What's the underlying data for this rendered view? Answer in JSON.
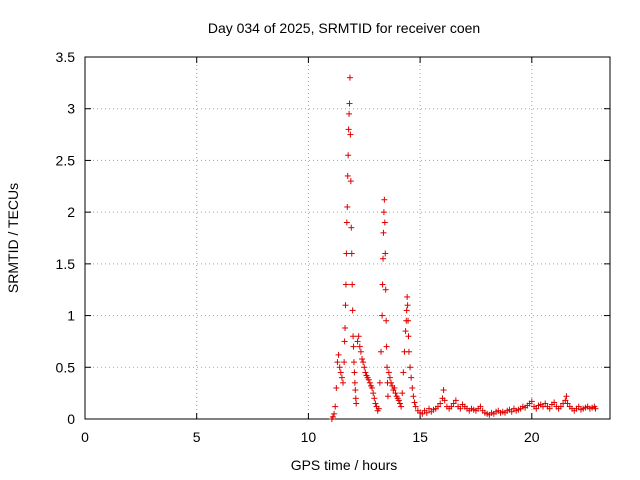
{
  "chart_data": {
    "type": "scatter",
    "title": "Day 034 of 2025, SRMTID for receiver coen",
    "xlabel": "GPS time / hours",
    "ylabel": "SRMTID / TECUs",
    "xlim": [
      0,
      23.5
    ],
    "ylim": [
      0,
      3.5
    ],
    "x_ticks": [
      0,
      5,
      10,
      15,
      20
    ],
    "x_tick_labels": [
      "0",
      "5",
      "10",
      "15",
      "20"
    ],
    "y_ticks": [
      0,
      0.5,
      1,
      1.5,
      2,
      2.5,
      3,
      3.5
    ],
    "y_tick_labels": [
      "0",
      "0.5",
      "1",
      "1.5",
      "2",
      "2.5",
      "3",
      "3.5"
    ],
    "grid": true,
    "marker": "+",
    "marker_color": "#e00000",
    "series": [
      {
        "name": "SRMTID",
        "points": [
          [
            11.05,
            0.0
          ],
          [
            11.1,
            0.02
          ],
          [
            11.15,
            0.05
          ],
          [
            11.2,
            0.12
          ],
          [
            11.25,
            0.3
          ],
          [
            11.3,
            0.55
          ],
          [
            11.35,
            0.62
          ],
          [
            11.4,
            0.5
          ],
          [
            11.45,
            0.45
          ],
          [
            11.5,
            0.4
          ],
          [
            11.55,
            0.35
          ],
          [
            11.6,
            0.55
          ],
          [
            11.62,
            0.75
          ],
          [
            11.64,
            0.88
          ],
          [
            11.66,
            1.1
          ],
          [
            11.68,
            1.3
          ],
          [
            11.7,
            1.6
          ],
          [
            11.72,
            1.9
          ],
          [
            11.74,
            2.05
          ],
          [
            11.76,
            2.35
          ],
          [
            11.78,
            2.55
          ],
          [
            11.8,
            2.8
          ],
          [
            11.82,
            2.95
          ],
          [
            11.84,
            3.05
          ],
          [
            11.86,
            3.3
          ],
          [
            11.88,
            2.75
          ],
          [
            11.9,
            2.3
          ],
          [
            11.92,
            1.85
          ],
          [
            11.94,
            1.6
          ],
          [
            11.96,
            1.3
          ],
          [
            11.98,
            1.05
          ],
          [
            12.0,
            0.8
          ],
          [
            12.02,
            0.7
          ],
          [
            12.04,
            0.55
          ],
          [
            12.06,
            0.45
          ],
          [
            12.08,
            0.35
          ],
          [
            12.1,
            0.28
          ],
          [
            12.12,
            0.2
          ],
          [
            12.14,
            0.15
          ],
          [
            12.2,
            0.75
          ],
          [
            12.25,
            0.8
          ],
          [
            12.3,
            0.7
          ],
          [
            12.35,
            0.65
          ],
          [
            12.4,
            0.58
          ],
          [
            12.45,
            0.55
          ],
          [
            12.5,
            0.5
          ],
          [
            12.55,
            0.45
          ],
          [
            12.6,
            0.42
          ],
          [
            12.65,
            0.4
          ],
          [
            12.7,
            0.38
          ],
          [
            12.75,
            0.35
          ],
          [
            12.8,
            0.32
          ],
          [
            12.85,
            0.3
          ],
          [
            12.9,
            0.25
          ],
          [
            12.95,
            0.2
          ],
          [
            13.0,
            0.15
          ],
          [
            13.05,
            0.12
          ],
          [
            13.1,
            0.08
          ],
          [
            13.15,
            0.1
          ],
          [
            13.2,
            0.35
          ],
          [
            13.25,
            0.65
          ],
          [
            13.3,
            1.0
          ],
          [
            13.32,
            1.3
          ],
          [
            13.34,
            1.55
          ],
          [
            13.36,
            1.8
          ],
          [
            13.38,
            2.0
          ],
          [
            13.4,
            2.12
          ],
          [
            13.42,
            1.9
          ],
          [
            13.44,
            1.6
          ],
          [
            13.46,
            1.25
          ],
          [
            13.48,
            0.95
          ],
          [
            13.5,
            0.7
          ],
          [
            13.52,
            0.5
          ],
          [
            13.54,
            0.35
          ],
          [
            13.56,
            0.22
          ],
          [
            13.6,
            0.45
          ],
          [
            13.65,
            0.4
          ],
          [
            13.7,
            0.35
          ],
          [
            13.75,
            0.32
          ],
          [
            13.8,
            0.28
          ],
          [
            13.85,
            0.3
          ],
          [
            13.9,
            0.25
          ],
          [
            13.95,
            0.22
          ],
          [
            14.0,
            0.2
          ],
          [
            14.05,
            0.18
          ],
          [
            14.1,
            0.15
          ],
          [
            14.15,
            0.12
          ],
          [
            14.2,
            0.25
          ],
          [
            14.25,
            0.45
          ],
          [
            14.3,
            0.65
          ],
          [
            14.35,
            0.85
          ],
          [
            14.38,
            0.95
          ],
          [
            14.4,
            1.05
          ],
          [
            14.42,
            1.18
          ],
          [
            14.44,
            1.1
          ],
          [
            14.46,
            0.95
          ],
          [
            14.48,
            0.8
          ],
          [
            14.5,
            0.65
          ],
          [
            14.55,
            0.5
          ],
          [
            14.6,
            0.4
          ],
          [
            14.65,
            0.3
          ],
          [
            14.7,
            0.22
          ],
          [
            14.75,
            0.16
          ],
          [
            14.8,
            0.12
          ],
          [
            14.9,
            0.08
          ],
          [
            15.0,
            0.06
          ],
          [
            15.1,
            0.05
          ],
          [
            15.2,
            0.08
          ],
          [
            15.3,
            0.06
          ],
          [
            15.4,
            0.1
          ],
          [
            15.5,
            0.07
          ],
          [
            15.6,
            0.09
          ],
          [
            15.7,
            0.1
          ],
          [
            15.8,
            0.12
          ],
          [
            15.9,
            0.15
          ],
          [
            16.0,
            0.2
          ],
          [
            16.05,
            0.28
          ],
          [
            16.1,
            0.18
          ],
          [
            16.2,
            0.12
          ],
          [
            16.3,
            0.1
          ],
          [
            16.4,
            0.12
          ],
          [
            16.5,
            0.15
          ],
          [
            16.6,
            0.18
          ],
          [
            16.7,
            0.12
          ],
          [
            16.8,
            0.1
          ],
          [
            16.9,
            0.14
          ],
          [
            17.0,
            0.12
          ],
          [
            17.1,
            0.1
          ],
          [
            17.2,
            0.08
          ],
          [
            17.3,
            0.1
          ],
          [
            17.4,
            0.09
          ],
          [
            17.5,
            0.08
          ],
          [
            17.6,
            0.1
          ],
          [
            17.7,
            0.12
          ],
          [
            17.8,
            0.08
          ],
          [
            17.9,
            0.06
          ],
          [
            18.0,
            0.05
          ],
          [
            18.1,
            0.04
          ],
          [
            18.2,
            0.06
          ],
          [
            18.3,
            0.05
          ],
          [
            18.4,
            0.07
          ],
          [
            18.5,
            0.08
          ],
          [
            18.6,
            0.06
          ],
          [
            18.7,
            0.07
          ],
          [
            18.8,
            0.06
          ],
          [
            18.9,
            0.08
          ],
          [
            19.0,
            0.09
          ],
          [
            19.1,
            0.07
          ],
          [
            19.2,
            0.1
          ],
          [
            19.3,
            0.08
          ],
          [
            19.4,
            0.09
          ],
          [
            19.5,
            0.1
          ],
          [
            19.6,
            0.12
          ],
          [
            19.7,
            0.11
          ],
          [
            19.8,
            0.13
          ],
          [
            19.9,
            0.15
          ],
          [
            20.0,
            0.17
          ],
          [
            20.1,
            0.12
          ],
          [
            20.2,
            0.1
          ],
          [
            20.3,
            0.13
          ],
          [
            20.4,
            0.14
          ],
          [
            20.5,
            0.12
          ],
          [
            20.6,
            0.15
          ],
          [
            20.7,
            0.12
          ],
          [
            20.8,
            0.1
          ],
          [
            20.9,
            0.14
          ],
          [
            21.0,
            0.16
          ],
          [
            21.1,
            0.12
          ],
          [
            21.2,
            0.1
          ],
          [
            21.3,
            0.12
          ],
          [
            21.4,
            0.15
          ],
          [
            21.5,
            0.18
          ],
          [
            21.55,
            0.22
          ],
          [
            21.6,
            0.15
          ],
          [
            21.7,
            0.12
          ],
          [
            21.8,
            0.1
          ],
          [
            21.9,
            0.08
          ],
          [
            22.0,
            0.1
          ],
          [
            22.1,
            0.12
          ],
          [
            22.2,
            0.09
          ],
          [
            22.3,
            0.1
          ],
          [
            22.4,
            0.11
          ],
          [
            22.5,
            0.12
          ],
          [
            22.6,
            0.1
          ],
          [
            22.7,
            0.11
          ],
          [
            22.8,
            0.12
          ],
          [
            22.85,
            0.1
          ]
        ]
      }
    ]
  }
}
